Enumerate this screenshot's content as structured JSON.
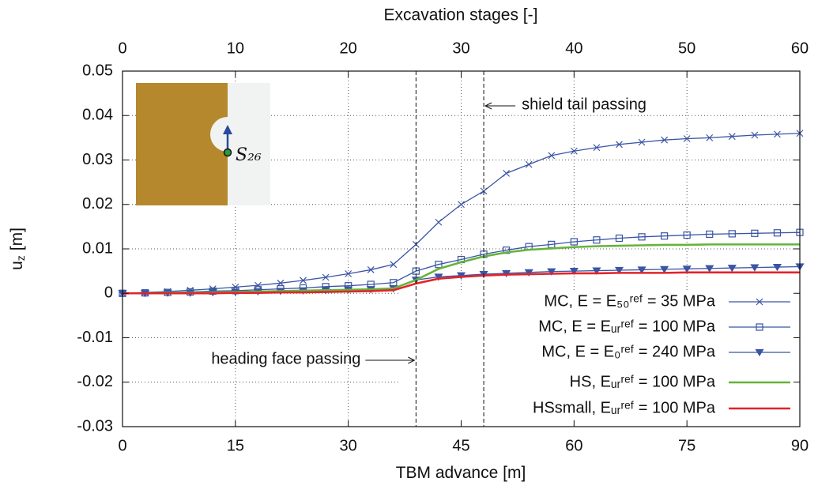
{
  "chart_data": {
    "type": "line",
    "xlabel": "TBM advance [m]",
    "x2label": "Excavation stages [-]",
    "ylabel": [
      "u",
      "z",
      "[m]"
    ],
    "xlim": [
      0,
      90
    ],
    "xticks": [
      0,
      15,
      30,
      45,
      60,
      75,
      90
    ],
    "x2lim": [
      0,
      60
    ],
    "x2ticks": [
      0,
      10,
      20,
      30,
      40,
      50,
      60
    ],
    "ylim": [
      -0.03,
      0.05
    ],
    "yticks": [
      -0.03,
      -0.02,
      -0.01,
      0,
      0.01,
      0.02,
      0.03,
      0.04,
      0.05
    ],
    "grid": true,
    "legend": "lower right",
    "x": [
      0,
      3,
      6,
      9,
      12,
      15,
      18,
      21,
      24,
      27,
      30,
      33,
      36,
      39,
      42,
      45,
      48,
      51,
      54,
      57,
      60,
      63,
      66,
      69,
      72,
      75,
      78,
      81,
      84,
      87,
      90
    ],
    "series": [
      {
        "name": "MC, E = E₅₀ʳᵉᶠ = 35 MPa",
        "color": "#3a55a4",
        "marker": "x",
        "values": [
          0,
          0.0002,
          0.0004,
          0.0007,
          0.001,
          0.0014,
          0.0018,
          0.0023,
          0.0029,
          0.0036,
          0.0044,
          0.0053,
          0.0065,
          0.011,
          0.016,
          0.02,
          0.023,
          0.027,
          0.029,
          0.031,
          0.032,
          0.0328,
          0.0335,
          0.034,
          0.0345,
          0.0348,
          0.035,
          0.0353,
          0.0356,
          0.0358,
          0.036
        ]
      },
      {
        "name": "MC, E = Eᵤᵣʳᵉᶠ = 100 MPa",
        "color": "#3a55a4",
        "marker": "square",
        "values": [
          0,
          0.0001,
          0.0002,
          0.0003,
          0.0005,
          0.0006,
          0.0008,
          0.001,
          0.0012,
          0.0015,
          0.0017,
          0.002,
          0.0024,
          0.005,
          0.0065,
          0.0076,
          0.0088,
          0.0097,
          0.0105,
          0.011,
          0.0116,
          0.012,
          0.0124,
          0.0127,
          0.0129,
          0.0131,
          0.0133,
          0.0134,
          0.0135,
          0.0136,
          0.0137
        ]
      },
      {
        "name": "MC, E = E₀ʳᵉᶠ = 240 MPa",
        "color": "#3a55a4",
        "marker": "triangle-down",
        "values": [
          0,
          0,
          0.0001,
          0.0001,
          0.0002,
          0.0003,
          0.0004,
          0.0005,
          0.0006,
          0.0007,
          0.0008,
          0.0009,
          0.0011,
          0.003,
          0.0037,
          0.004,
          0.0043,
          0.0045,
          0.0047,
          0.0049,
          0.005,
          0.0051,
          0.0052,
          0.0053,
          0.0054,
          0.0055,
          0.0056,
          0.0057,
          0.0058,
          0.0059,
          0.006
        ]
      },
      {
        "name": "HS, Eᵤᵣʳᵉᶠ = 100 MPa",
        "color": "#66b33b",
        "values": [
          0,
          0,
          0.0001,
          0.0001,
          0.0002,
          0.0003,
          0.0004,
          0.0005,
          0.0006,
          0.0007,
          0.0008,
          0.0009,
          0.0011,
          0.003,
          0.0055,
          0.007,
          0.0083,
          0.0092,
          0.0098,
          0.0101,
          0.0104,
          0.0106,
          0.0107,
          0.0108,
          0.0109,
          0.0109,
          0.011,
          0.011,
          0.011,
          0.011,
          0.011
        ]
      },
      {
        "name": "HSsmall, Eᵤᵣʳᵉᶠ = 100 MPa",
        "color": "#e3232b",
        "values": [
          0,
          0,
          0,
          0,
          0,
          0.0001,
          0.0001,
          0.0002,
          0.0002,
          0.0003,
          0.0004,
          0.0005,
          0.0007,
          0.0022,
          0.0033,
          0.0037,
          0.004,
          0.0042,
          0.0043,
          0.0044,
          0.0045,
          0.0045,
          0.0046,
          0.0046,
          0.0046,
          0.0047,
          0.0047,
          0.0047,
          0.0047,
          0.0047,
          0.0047
        ]
      }
    ],
    "annotations": [
      {
        "text": "heading face passing",
        "x": 39
      },
      {
        "text": "shield tail passing",
        "x": 48
      }
    ],
    "inset_label": "S₂₆"
  }
}
